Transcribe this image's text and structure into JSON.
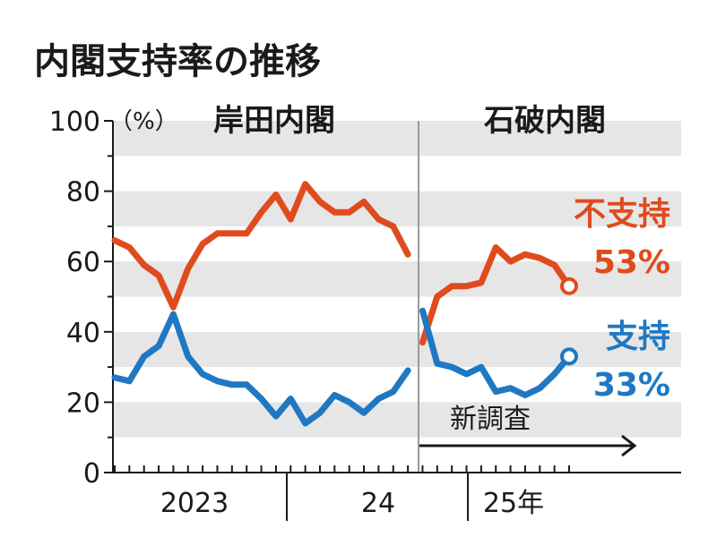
{
  "chart_data": {
    "type": "line",
    "title": "内閣支持率の推移",
    "y_unit": "（%）",
    "ylim": [
      0,
      100
    ],
    "y_ticks": [
      "100",
      "80",
      "60",
      "40",
      "20",
      "0"
    ],
    "grid": "horizontal bands",
    "eras": [
      {
        "name": "岸田内閣",
        "start_index": 0,
        "end_index": 18
      },
      {
        "name": "石破内閣",
        "start_index": 19,
        "end_index": 29
      }
    ],
    "x_tick_labels": [
      "2023",
      "24",
      "25年"
    ],
    "note": "新調査",
    "series": [
      {
        "name": "不支持",
        "color": "#e04b1e",
        "final_label": "53%",
        "values": [
          66,
          64,
          59,
          56,
          47,
          58,
          65,
          68,
          68,
          68,
          74,
          79,
          72,
          82,
          77,
          74,
          74,
          77,
          72,
          70,
          62,
          37,
          50,
          53,
          53,
          54,
          64,
          60,
          62,
          61,
          59,
          53
        ]
      },
      {
        "name": "支持",
        "color": "#1f78c1",
        "final_label": "33%",
        "values": [
          27,
          26,
          33,
          36,
          45,
          33,
          28,
          26,
          25,
          25,
          21,
          16,
          21,
          14,
          17,
          22,
          20,
          17,
          21,
          23,
          29,
          46,
          31,
          30,
          28,
          30,
          23,
          24,
          22,
          24,
          28,
          33
        ]
      }
    ]
  }
}
